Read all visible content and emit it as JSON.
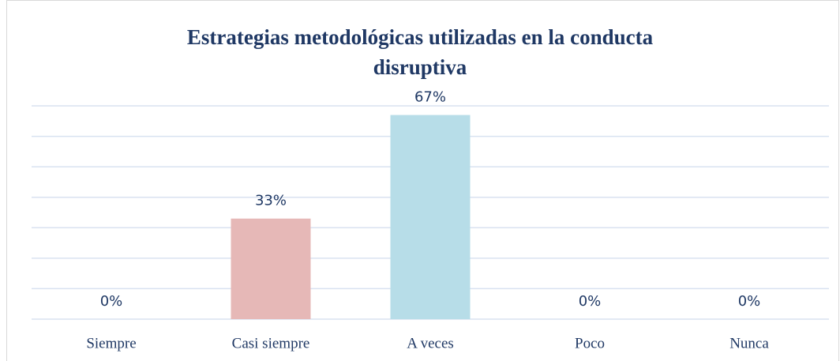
{
  "chart_data": {
    "type": "bar",
    "title": "Estrategias metodológicas utilizadas en la conducta disruptiva",
    "categories": [
      "Siempre",
      "Casi siempre",
      "A veces",
      "Poco",
      "Nunca"
    ],
    "values": [
      0,
      33,
      67,
      0,
      0
    ],
    "value_labels": [
      "0%",
      "33%",
      "67%",
      "0%",
      "0%"
    ],
    "colors": [
      null,
      "#e6b8b7",
      "#b7dde8",
      null,
      null
    ],
    "ylim": [
      0,
      70
    ],
    "yticks": [
      0,
      10,
      20,
      30,
      40,
      50,
      60,
      70
    ],
    "grid": true
  }
}
